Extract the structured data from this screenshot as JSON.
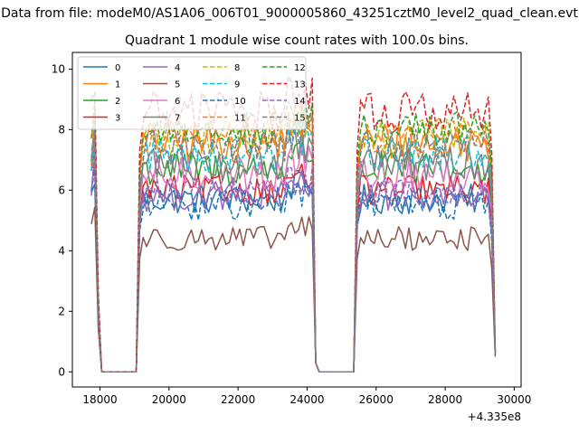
{
  "figure": {
    "suptitle": "Data from file: modeM0/AS1A06_006T01_9000005860_43251cztM0_level2_quad_clean.evt",
    "title": "Quadrant 1 module wise count rates with 100.0s bins."
  },
  "chart_data": {
    "type": "line",
    "title": "Quadrant 1 module wise count rates with 100.0s bins.",
    "xlabel": "",
    "ylabel": "",
    "x_offset_label": "+4.335e8",
    "xlim": [
      17200,
      30200
    ],
    "ylim": [
      -0.5,
      10.55
    ],
    "x_ticks": [
      18000,
      20000,
      22000,
      24000,
      26000,
      28000,
      30000
    ],
    "y_ticks": [
      0,
      2,
      4,
      6,
      8,
      10
    ],
    "grid": false,
    "legend": {
      "placement": "top-left",
      "columns": 4
    },
    "x_range": {
      "start": 17750,
      "end": 29450,
      "step": 100
    },
    "segments": [
      {
        "from": 17750,
        "to": 18000,
        "state": "ramp-down"
      },
      {
        "from": 18000,
        "to": 19100,
        "state": "zero"
      },
      {
        "from": 19200,
        "to": 24200,
        "state": "on"
      },
      {
        "from": 24300,
        "to": 25400,
        "state": "zero"
      },
      {
        "from": 25550,
        "to": 29350,
        "state": "on"
      },
      {
        "from": 29450,
        "to": 29450,
        "state": "ramp-down"
      }
    ],
    "series": [
      {
        "name": "0",
        "color": "#1f77b4",
        "style": "solid",
        "first": 5.7,
        "level": 5.7,
        "spread": 0.5,
        "drop_at_end": 0.6
      },
      {
        "name": "1",
        "color": "#ff7f0e",
        "style": "solid",
        "first": 7.4,
        "level": 7.6,
        "spread": 0.7,
        "drop_at_end": 0.7
      },
      {
        "name": "2",
        "color": "#2ca02c",
        "style": "solid",
        "first": 7.0,
        "level": 6.7,
        "spread": 0.6,
        "drop_at_end": 0.6
      },
      {
        "name": "3",
        "color": "#d62728",
        "style": "solid",
        "first": 6.4,
        "level": 6.0,
        "spread": 0.5,
        "drop_at_end": 0.6
      },
      {
        "name": "4",
        "color": "#9467bd",
        "style": "solid",
        "first": 6.2,
        "level": 5.8,
        "spread": 0.5,
        "drop_at_end": 0.6
      },
      {
        "name": "5",
        "color": "#8c564b",
        "style": "solid",
        "first": 4.8,
        "level": 4.4,
        "spread": 0.4,
        "drop_at_end": 0.5
      },
      {
        "name": "6",
        "color": "#e377c2",
        "style": "solid",
        "first": 6.7,
        "level": 6.5,
        "spread": 0.6,
        "drop_at_end": 0.6
      },
      {
        "name": "7",
        "color": "#7f7f7f",
        "style": "solid",
        "first": 6.8,
        "level": 6.9,
        "spread": 0.6,
        "drop_at_end": 0.6
      },
      {
        "name": "8",
        "color": "#bcbd22",
        "style": "dashed",
        "first": 7.0,
        "level": 7.8,
        "spread": 0.6,
        "drop_at_end": 0.6
      },
      {
        "name": "9",
        "color": "#17becf",
        "style": "dashed",
        "first": 7.1,
        "level": 7.2,
        "spread": 0.6,
        "drop_at_end": 0.6
      },
      {
        "name": "10",
        "color": "#1f77b4",
        "style": "dashed",
        "first": 6.0,
        "level": 5.5,
        "spread": 0.5,
        "drop_at_end": 0.6
      },
      {
        "name": "11",
        "color": "#ff7f0e",
        "style": "dashed",
        "first": 7.5,
        "level": 7.7,
        "spread": 0.6,
        "drop_at_end": 0.6
      },
      {
        "name": "12",
        "color": "#2ca02c",
        "style": "dashed",
        "first": 8.0,
        "level": 8.0,
        "spread": 0.6,
        "drop_at_end": 0.7
      },
      {
        "name": "13",
        "color": "#d62728",
        "style": "dashed",
        "first": 8.8,
        "level": 8.6,
        "spread": 0.7,
        "drop_at_end": 0.7
      },
      {
        "name": "14",
        "color": "#9467bd",
        "style": "dashed",
        "first": 6.3,
        "level": 5.9,
        "spread": 0.5,
        "drop_at_end": 0.6
      },
      {
        "name": "15",
        "color": "#7f7f7f",
        "style": "dashed",
        "first": 7.2,
        "level": 7.4,
        "spread": 0.6,
        "drop_at_end": 0.6
      }
    ]
  }
}
